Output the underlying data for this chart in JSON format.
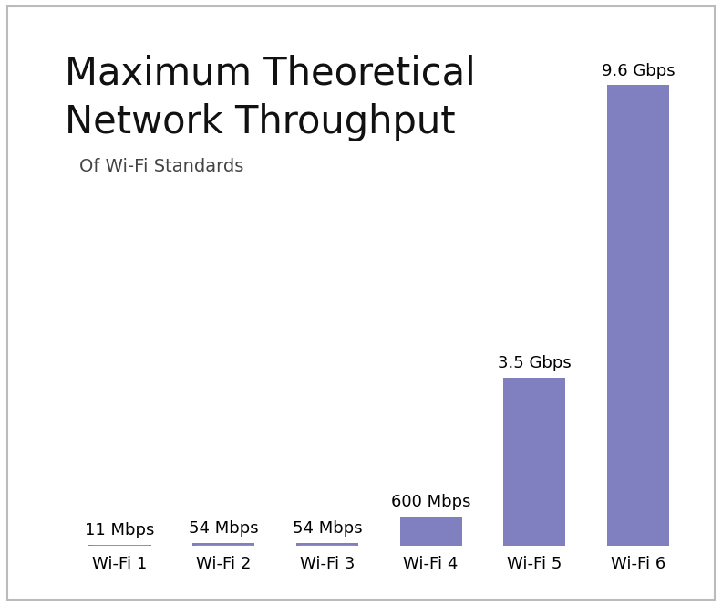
{
  "title_line1": "Maximum Theoretical",
  "title_line2": "Network Throughput",
  "subtitle": "Of Wi-Fi Standards",
  "categories": [
    "Wi-Fi 1",
    "Wi-Fi 2",
    "Wi-Fi 3",
    "Wi-Fi 4",
    "Wi-Fi 5",
    "Wi-Fi 6"
  ],
  "values_mbps": [
    11,
    54,
    54,
    600,
    3500,
    9600
  ],
  "labels": [
    "11 Mbps",
    "54 Mbps",
    "54 Mbps",
    "600 Mbps",
    "3.5 Gbps",
    "9.6 Gbps"
  ],
  "bar_color": "#8080C0",
  "underline_color": "#9090CC",
  "background_color": "#FFFFFF",
  "title_fontsize": 30,
  "subtitle_fontsize": 14,
  "label_fontsize": 13,
  "tick_fontsize": 13,
  "bar_width": 0.6,
  "ylim": [
    0,
    11000
  ],
  "figsize": [
    7.92,
    6.64
  ],
  "dpi": 100
}
